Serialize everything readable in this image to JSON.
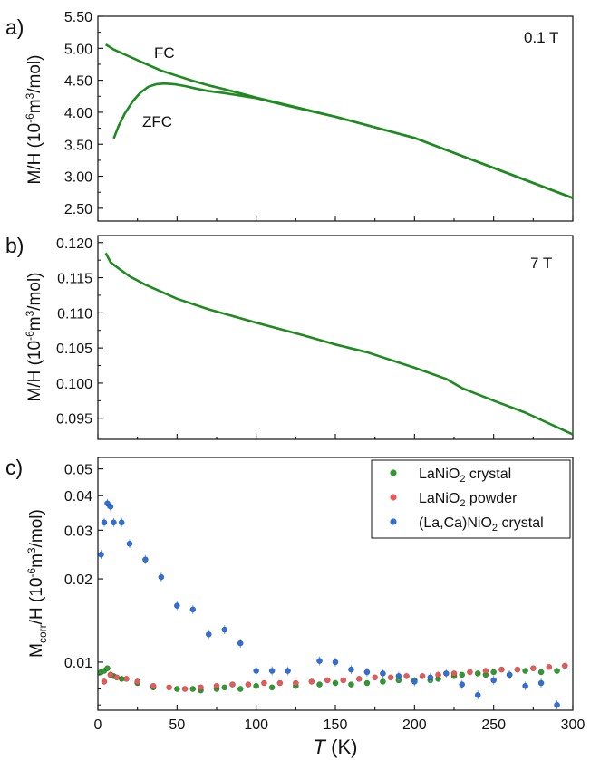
{
  "chart_data": [
    {
      "type": "line",
      "panel_label": "a)",
      "annotation": "0.1 T",
      "ylabel": "M/H (10^-6m^3/mol)",
      "xlim": [
        0,
        300
      ],
      "ylim": [
        2.3,
        5.5
      ],
      "yticks": [
        "2.50",
        "3.00",
        "3.50",
        "4.00",
        "4.50",
        "5.00",
        "5.50"
      ],
      "grid": false,
      "color": "#1f8a1f",
      "series": [
        {
          "name": "FC",
          "x": [
            5,
            10,
            20,
            30,
            40,
            50,
            60,
            70,
            80,
            100,
            120,
            150,
            200,
            250,
            300
          ],
          "y": [
            5.06,
            4.98,
            4.87,
            4.76,
            4.65,
            4.57,
            4.49,
            4.42,
            4.36,
            4.23,
            4.11,
            3.93,
            3.6,
            3.13,
            2.66
          ]
        },
        {
          "name": "ZFC",
          "x": [
            10,
            13,
            17,
            22,
            27,
            32,
            37,
            42,
            48,
            55,
            62,
            70,
            80,
            100,
            120,
            150,
            200,
            250,
            300
          ],
          "y": [
            3.59,
            3.78,
            3.98,
            4.17,
            4.31,
            4.4,
            4.44,
            4.45,
            4.44,
            4.41,
            4.37,
            4.33,
            4.3,
            4.22,
            4.1,
            3.93,
            3.6,
            3.13,
            2.66
          ]
        }
      ]
    },
    {
      "type": "line",
      "panel_label": "b)",
      "annotation": "7 T",
      "ylabel": "M/H (10^-6m^3/mol)",
      "xlim": [
        0,
        300
      ],
      "ylim": [
        0.092,
        0.121
      ],
      "yticks": [
        "0.095",
        "0.100",
        "0.105",
        "0.110",
        "0.115",
        "0.120"
      ],
      "grid": false,
      "color": "#1f8a1f",
      "series": [
        {
          "name": "",
          "x": [
            5,
            8,
            12,
            20,
            30,
            40,
            50,
            70,
            100,
            130,
            150,
            170,
            200,
            220,
            230,
            250,
            270,
            300
          ],
          "y": [
            0.1185,
            0.1172,
            0.1165,
            0.1152,
            0.114,
            0.113,
            0.112,
            0.1105,
            0.1086,
            0.1068,
            0.1055,
            0.1044,
            0.1022,
            0.1006,
            0.0993,
            0.0975,
            0.0958,
            0.0927
          ]
        }
      ]
    },
    {
      "type": "scatter",
      "panel_label": "c)",
      "ylabel": "Mcorr/H (10^-6m^3/mol)",
      "xlabel": "T (K)",
      "xlim": [
        0,
        300
      ],
      "xticks": [
        "0",
        "50",
        "100",
        "150",
        "200",
        "250",
        "300"
      ],
      "ylim": [
        0.0067,
        0.055
      ],
      "yscale": "log",
      "yticks": [
        "0.01",
        "0.02",
        "0.03",
        "0.04",
        "0.05"
      ],
      "grid": false,
      "legend_position": "top-right",
      "series": [
        {
          "name": "LaNiO2 crystal",
          "color": "#2e9b2e",
          "x": [
            2,
            4,
            6,
            8,
            10,
            15,
            25,
            35,
            50,
            60,
            65,
            75,
            80,
            90,
            100,
            110,
            125,
            140,
            150,
            160,
            170,
            180,
            190,
            200,
            210,
            215,
            225,
            230,
            240,
            245,
            250,
            260,
            270,
            280,
            290
          ],
          "y": [
            0.0092,
            0.0093,
            0.0095,
            0.009,
            0.0089,
            0.0087,
            0.0084,
            0.0081,
            0.008,
            0.008,
            0.0079,
            0.008,
            0.0081,
            0.008,
            0.0082,
            0.0081,
            0.0082,
            0.0083,
            0.0084,
            0.0083,
            0.0084,
            0.0085,
            0.0086,
            0.0086,
            0.0086,
            0.0087,
            0.0089,
            0.009,
            0.0091,
            0.009,
            0.0092,
            0.009,
            0.0093,
            0.0092,
            0.0093
          ]
        },
        {
          "name": "LaNiO2 powder",
          "color": "#e85a5a",
          "x": [
            4,
            8,
            12,
            18,
            25,
            35,
            45,
            55,
            65,
            75,
            85,
            95,
            105,
            115,
            125,
            135,
            145,
            155,
            165,
            175,
            185,
            195,
            205,
            215,
            225,
            235,
            245,
            255,
            265,
            275,
            285,
            295
          ],
          "y": [
            0.0085,
            0.009,
            0.0088,
            0.0087,
            0.0085,
            0.0082,
            0.0081,
            0.008,
            0.0081,
            0.0082,
            0.0083,
            0.0083,
            0.0084,
            0.0084,
            0.0084,
            0.0085,
            0.0086,
            0.0086,
            0.0087,
            0.0088,
            0.0088,
            0.0089,
            0.0089,
            0.009,
            0.0091,
            0.0092,
            0.0093,
            0.0094,
            0.0094,
            0.0095,
            0.0096,
            0.0097
          ]
        },
        {
          "name": "(La,Ca)NiO2 crystal",
          "color": "#2f6fd6",
          "x": [
            2,
            4,
            6,
            8,
            10,
            15,
            20,
            30,
            40,
            50,
            60,
            70,
            80,
            90,
            100,
            110,
            120,
            140,
            150,
            160,
            170,
            180,
            190,
            200,
            210,
            220,
            230,
            240,
            250,
            260,
            270,
            280,
            290
          ],
          "y": [
            0.0245,
            0.032,
            0.0375,
            0.0365,
            0.032,
            0.032,
            0.0268,
            0.0235,
            0.0203,
            0.016,
            0.0155,
            0.0126,
            0.0131,
            0.0117,
            0.0093,
            0.0093,
            0.0093,
            0.0101,
            0.01,
            0.0094,
            0.0092,
            0.0091,
            0.0089,
            0.0085,
            0.0088,
            0.0091,
            0.0083,
            0.0076,
            0.0086,
            0.009,
            0.0082,
            0.0084,
            0.007
          ]
        }
      ]
    }
  ]
}
